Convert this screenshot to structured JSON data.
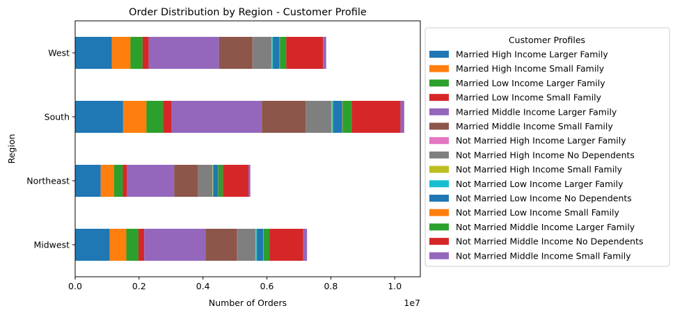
{
  "chart_data": {
    "type": "bar",
    "orientation": "horizontal",
    "stacked": true,
    "title": "Order Distribution by Region - Customer Profile",
    "xlabel": "Number of Orders",
    "ylabel": "Region",
    "x_scale_label": "1e7",
    "xlim": [
      0,
      10800000
    ],
    "x_ticks": [
      0,
      2000000,
      4000000,
      6000000,
      8000000,
      10000000
    ],
    "x_tick_labels": [
      "0.0",
      "0.2",
      "0.4",
      "0.6",
      "0.8",
      "1.0"
    ],
    "categories": [
      "Midwest",
      "Northeast",
      "South",
      "West"
    ],
    "grid": false,
    "legend_title": "Customer Profiles",
    "legend_position": "right, outside plot",
    "series": [
      {
        "name": "Married High Income Larger Family",
        "color": "#1f77b4",
        "values": [
          1080000,
          800000,
          1500000,
          1150000
        ]
      },
      {
        "name": "Married High Income Small Family",
        "color": "#ff7f0e",
        "values": [
          520000,
          420000,
          730000,
          580000
        ]
      },
      {
        "name": "Married Low Income Larger Family",
        "color": "#2ca02c",
        "values": [
          380000,
          270000,
          520000,
          380000
        ]
      },
      {
        "name": "Married Low Income Small Family",
        "color": "#d62728",
        "values": [
          180000,
          130000,
          270000,
          190000
        ]
      },
      {
        "name": "Married Middle Income Larger Family",
        "color": "#9467bd",
        "values": [
          1920000,
          1480000,
          2820000,
          2200000
        ]
      },
      {
        "name": "Married Middle Income Small Family",
        "color": "#8c564b",
        "values": [
          990000,
          750000,
          1380000,
          1050000
        ]
      },
      {
        "name": "Not Married High Income Larger Family",
        "color": "#e377c2",
        "values": [
          5000,
          4000,
          6000,
          5000
        ]
      },
      {
        "name": "Not Married High Income No Dependents",
        "color": "#7f7f7f",
        "values": [
          570000,
          440000,
          790000,
          590000
        ]
      },
      {
        "name": "Not Married High Income Small Family",
        "color": "#bcbd22",
        "values": [
          20000,
          15000,
          30000,
          20000
        ]
      },
      {
        "name": "Not Married Low Income Larger Family",
        "color": "#17becf",
        "values": [
          20000,
          15000,
          30000,
          20000
        ]
      },
      {
        "name": "Not Married Low Income No Dependents",
        "color": "#1f77b4",
        "values": [
          200000,
          150000,
          280000,
          210000
        ]
      },
      {
        "name": "Not Married Low Income Small Family",
        "color": "#ff7f0e",
        "values": [
          10000,
          8000,
          12000,
          10000
        ]
      },
      {
        "name": "Not Married Middle Income Larger Family",
        "color": "#2ca02c",
        "values": [
          190000,
          140000,
          290000,
          200000
        ]
      },
      {
        "name": "Not Married Middle Income No Dependents",
        "color": "#d62728",
        "values": [
          1050000,
          800000,
          1520000,
          1150000
        ]
      },
      {
        "name": "Not Married Middle Income Small Family",
        "color": "#9467bd",
        "values": [
          120000,
          60000,
          120000,
          100000
        ]
      }
    ]
  }
}
